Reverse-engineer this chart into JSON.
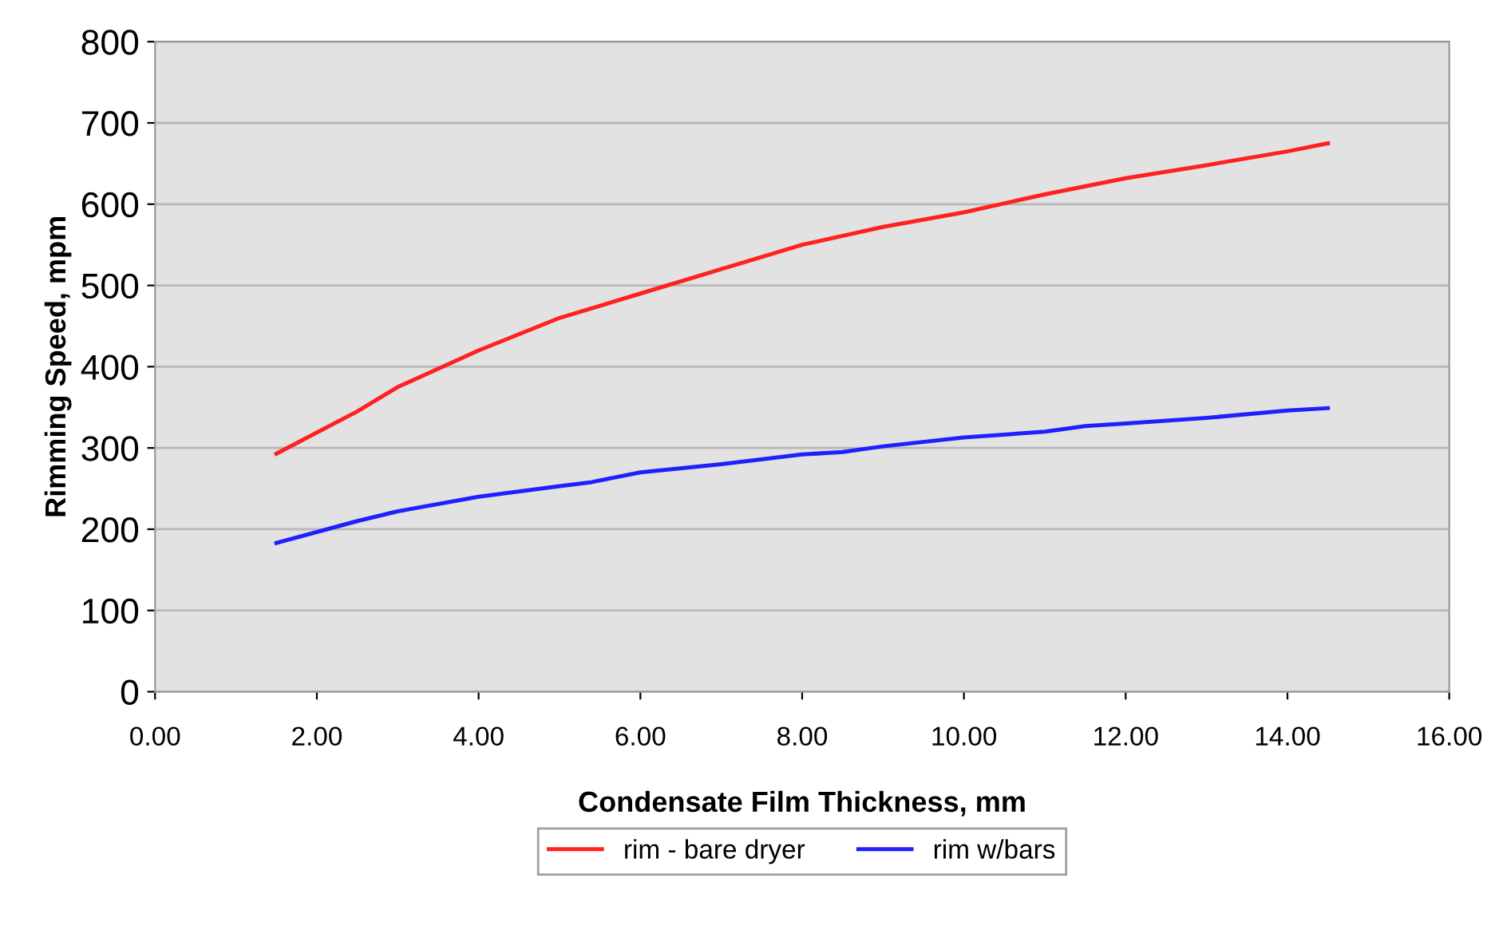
{
  "chart_data": {
    "type": "line",
    "xlabel": "Condensate Film Thickness, mm",
    "ylabel": "Rimming Speed, mpm",
    "xlim": [
      0,
      16
    ],
    "xticks": [
      {
        "value": 0,
        "label": "0.00"
      },
      {
        "value": 2,
        "label": "2.00"
      },
      {
        "value": 4,
        "label": "4.00"
      },
      {
        "value": 6,
        "label": "6.00"
      },
      {
        "value": 8,
        "label": "8.00"
      },
      {
        "value": 10,
        "label": "10.00"
      },
      {
        "value": 12,
        "label": "12.00"
      },
      {
        "value": 14,
        "label": "14.00"
      },
      {
        "value": 16,
        "label": "16.00"
      }
    ],
    "ylim": [
      0,
      800
    ],
    "yticks": [
      0,
      100,
      200,
      300,
      400,
      500,
      600,
      700,
      800
    ],
    "grid": "y",
    "legend": "bottom",
    "series": [
      {
        "name": "rim - bare dryer",
        "color": "#ff2020",
        "x": [
          1.5,
          2.5,
          3,
          4,
          5,
          6,
          7,
          8,
          9,
          10,
          11,
          12,
          13,
          14,
          14.5
        ],
        "values": [
          293,
          345,
          375,
          420,
          460,
          490,
          520,
          550,
          572,
          590,
          612,
          632,
          648,
          665,
          675
        ]
      },
      {
        "name": "rim w/bars",
        "color": "#2020ff",
        "x": [
          1.5,
          2.5,
          3,
          4,
          5,
          5.4,
          6,
          7,
          8,
          8.5,
          9,
          10,
          11,
          11.5,
          12,
          13,
          14,
          14.5
        ],
        "values": [
          183,
          210,
          222,
          240,
          253,
          258,
          270,
          280,
          292,
          295,
          302,
          313,
          320,
          327,
          330,
          337,
          346,
          349
        ]
      }
    ]
  }
}
